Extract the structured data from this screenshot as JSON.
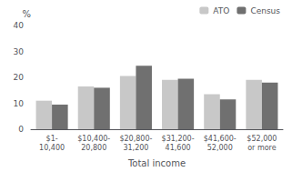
{
  "chart_data": {
    "type": "bar",
    "categories": [
      "$1-\n10,400",
      "$10,400-\n20,800",
      "$20,800-\n31,200",
      "$31,200-\n41,600",
      "$41,600-\n52,000",
      "$52,000\nor more"
    ],
    "series": [
      {
        "name": "ATO",
        "color": "#c8c8c8",
        "values": [
          11,
          16.5,
          20.5,
          19,
          13.5,
          19
        ]
      },
      {
        "name": "Census",
        "color": "#707070",
        "values": [
          9.5,
          16,
          24.5,
          19.5,
          11.5,
          18
        ]
      }
    ],
    "xlabel": "Total income",
    "ylabel": "%",
    "ylim": [
      0,
      40
    ],
    "yticks": [
      0,
      10,
      20,
      30,
      40
    ],
    "grid": false,
    "legend": "upper right"
  }
}
